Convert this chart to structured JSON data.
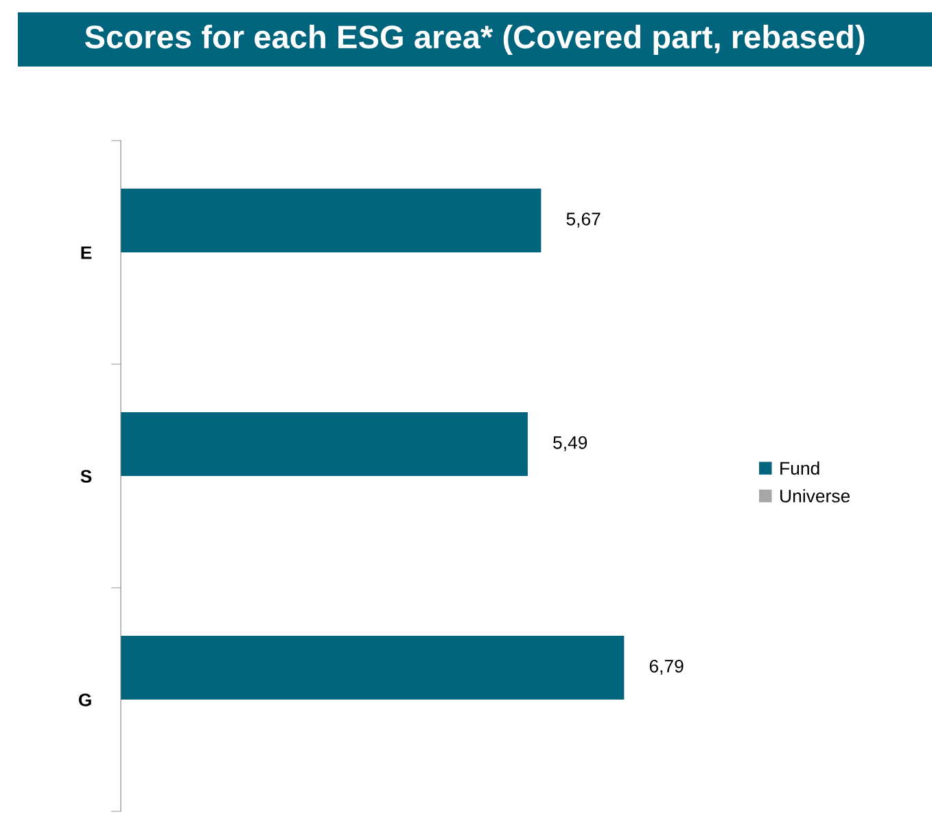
{
  "chart_data": {
    "type": "bar",
    "orientation": "horizontal",
    "title": "Scores for each ESG area* (Covered part, rebased)",
    "categories": [
      "E",
      "S",
      "G"
    ],
    "series": [
      {
        "name": "Fund",
        "color": "#00647d",
        "values": [
          5.67,
          5.49,
          6.79
        ],
        "value_labels": [
          "5,67",
          "5,49",
          "6,79"
        ]
      },
      {
        "name": "Universe",
        "color": "#a6a6a6",
        "values": [
          null,
          null,
          null
        ]
      }
    ],
    "tick_labels": "y",
    "grid": false,
    "legend": "right"
  }
}
